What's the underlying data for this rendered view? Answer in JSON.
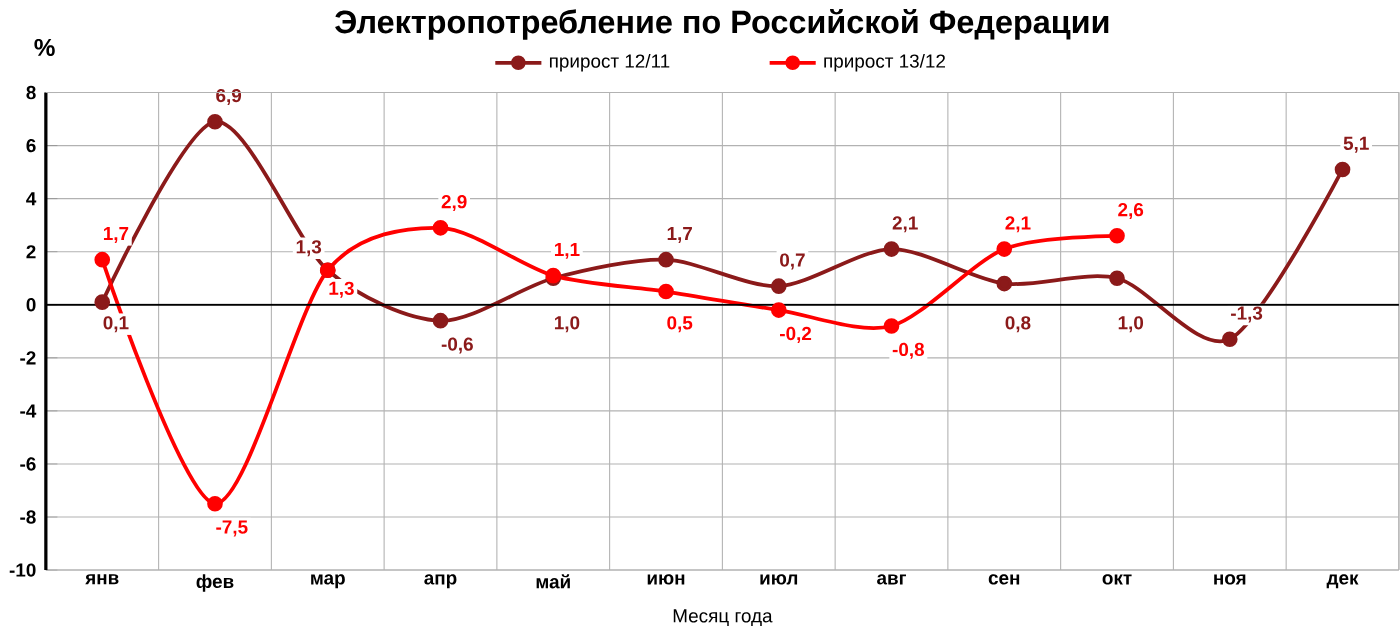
{
  "chart_data": {
    "type": "line",
    "title": "Электропотребление по Российской Федерации",
    "xlabel": "Месяц года",
    "ylabel": "%",
    "categories": [
      "янв",
      "фев",
      "мар",
      "апр",
      "май",
      "июн",
      "июл",
      "авг",
      "сен",
      "окт",
      "ноя",
      "дек"
    ],
    "series": [
      {
        "name": "прирост 12/11",
        "color": "#8b1a1a",
        "values": [
          0.1,
          6.9,
          1.3,
          -0.6,
          1.0,
          1.7,
          0.7,
          2.1,
          0.8,
          1.0,
          -1.3,
          5.1
        ],
        "value_labels": [
          "0,1",
          "6,9",
          "1,3",
          "-0,6",
          "1,0",
          "1,7",
          "0,7",
          "2,1",
          "0,8",
          "1,0",
          "-1,3",
          "5,1"
        ]
      },
      {
        "name": "прирост 13/12",
        "color": "#ff0000",
        "values": [
          1.7,
          -7.5,
          1.3,
          2.9,
          1.1,
          0.5,
          -0.2,
          -0.8,
          2.1,
          2.6,
          null,
          null
        ],
        "value_labels": [
          "1,7",
          "-7,5",
          "1,3",
          "2,9",
          "1,1",
          "0,5",
          "-0,2",
          "-0,8",
          "2,1",
          "2,6",
          null,
          null
        ]
      }
    ],
    "ylim": [
      -10,
      8
    ],
    "yticks": [
      -10,
      -8,
      -6,
      -4,
      -2,
      0,
      2,
      4,
      6,
      8
    ],
    "grid": true,
    "legend": "top",
    "marker": "circle",
    "line_style": "solid"
  }
}
